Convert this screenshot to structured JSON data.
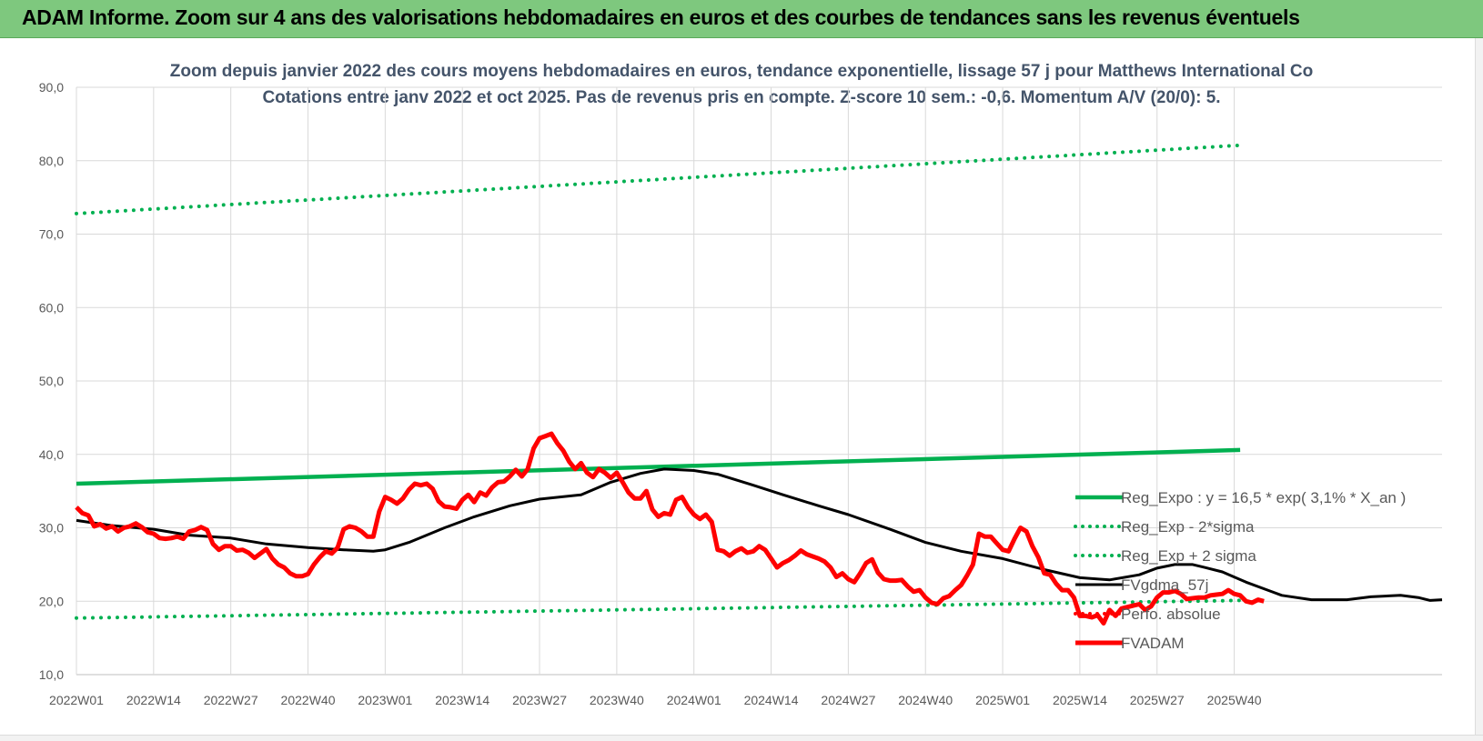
{
  "header": {
    "title": "ADAM Informe. Zoom sur 4 ans des valorisations hebdomadaires en euros et des courbes de tendances sans les revenus éventuels"
  },
  "chart_data": {
    "type": "line",
    "title": "Zoom depuis janvier 2022 des cours moyens hebdomadaires en euros, tendance exponentielle, lissage 57 j pour Matthews International Co",
    "subtitle": "Cotations entre janv 2022 et oct 2025. Pas de revenus pris en compte. Z-score 10 sem.: -0,6.  Momentum A/V (20/0): 5.",
    "xlabel": "",
    "ylabel": "",
    "ylim": [
      10,
      90
    ],
    "ytick_labels": [
      "10,0",
      "20,0",
      "30,0",
      "40,0",
      "50,0",
      "60,0",
      "70,0",
      "80,0",
      "90,0"
    ],
    "x_tick_labels": [
      "2022W01",
      "2022W14",
      "2022W27",
      "2022W40",
      "2023W01",
      "2023W14",
      "2023W27",
      "2023W40",
      "2024W01",
      "2024W14",
      "2024W27",
      "2024W40",
      "2025W01",
      "2025W14",
      "2025W27",
      "2025W40"
    ],
    "grid": "vertical and horizontal",
    "legend_position": "right",
    "colors": {
      "reg_expo": "#00b050",
      "fvgdma": "#000000",
      "perfo": "#ff0000",
      "fvadam": "#ff0000",
      "grid": "#d9d9d9",
      "banner": "#7ec87e"
    },
    "series": [
      {
        "name": "Reg_Expo : y = 16,5 * exp( 3,1% * X_an )",
        "style": "solid",
        "color": "#00b050",
        "points": [
          [
            0,
            36.0
          ],
          [
            196,
            40.6
          ]
        ]
      },
      {
        "name": "Reg_Exp - 2*sigma",
        "style": "dotted",
        "color": "#00b050",
        "points": [
          [
            0,
            17.7
          ],
          [
            196,
            20.1
          ]
        ]
      },
      {
        "name": "Reg_Exp + 2 sigma",
        "style": "dotted",
        "color": "#00b050",
        "points": [
          [
            0,
            72.8
          ],
          [
            196,
            82.1
          ]
        ]
      },
      {
        "name": "FVgdma_57j",
        "style": "solid",
        "color": "#000000",
        "points": [
          [
            0,
            31.0
          ],
          [
            6,
            30.3
          ],
          [
            13,
            29.8
          ],
          [
            19,
            29.0
          ],
          [
            26,
            28.6
          ],
          [
            32,
            27.8
          ],
          [
            39,
            27.3
          ],
          [
            45,
            27.0
          ],
          [
            50,
            26.8
          ],
          [
            52,
            27.0
          ],
          [
            56,
            28.0
          ],
          [
            62,
            30.0
          ],
          [
            67,
            31.5
          ],
          [
            73,
            33.0
          ],
          [
            78,
            33.9
          ],
          [
            85,
            34.5
          ],
          [
            90,
            36.2
          ],
          [
            95,
            37.4
          ],
          [
            99,
            38.0
          ],
          [
            104,
            37.8
          ],
          [
            108,
            37.3
          ],
          [
            114,
            35.8
          ],
          [
            119,
            34.5
          ],
          [
            125,
            33.0
          ],
          [
            130,
            31.8
          ],
          [
            137,
            29.8
          ],
          [
            143,
            28.0
          ],
          [
            149,
            26.8
          ],
          [
            156,
            25.8
          ],
          [
            163,
            24.3
          ],
          [
            169,
            23.2
          ],
          [
            174,
            22.9
          ],
          [
            179,
            23.6
          ],
          [
            182,
            24.5
          ],
          [
            185,
            25.0
          ],
          [
            188,
            25.0
          ],
          [
            190,
            24.6
          ],
          [
            193,
            24.0
          ],
          [
            197,
            22.6
          ],
          [
            203,
            20.8
          ],
          [
            208,
            20.2
          ],
          [
            214,
            20.2
          ],
          [
            218,
            20.6
          ],
          [
            223,
            20.8
          ],
          [
            226,
            20.5
          ],
          [
            228,
            20.1
          ],
          [
            230,
            20.2
          ]
        ]
      },
      {
        "name": "Perfo. absolue",
        "style": "dotted",
        "color": "#ff0000",
        "points": []
      },
      {
        "name": "FVADAM",
        "style": "solid",
        "color": "#ff0000",
        "points": [
          [
            0,
            32.8
          ],
          [
            1,
            32.0
          ],
          [
            2,
            31.7
          ],
          [
            3,
            30.2
          ],
          [
            4,
            30.5
          ],
          [
            5,
            29.9
          ],
          [
            6,
            30.2
          ],
          [
            7,
            29.5
          ],
          [
            8,
            30.0
          ],
          [
            9,
            30.2
          ],
          [
            10,
            30.6
          ],
          [
            11,
            30.1
          ],
          [
            12,
            29.4
          ],
          [
            13,
            29.2
          ],
          [
            14,
            28.6
          ],
          [
            15,
            28.5
          ],
          [
            16,
            28.6
          ],
          [
            17,
            28.8
          ],
          [
            18,
            28.5
          ],
          [
            19,
            29.5
          ],
          [
            20,
            29.7
          ],
          [
            21,
            30.1
          ],
          [
            22,
            29.7
          ],
          [
            23,
            27.8
          ],
          [
            24,
            27.0
          ],
          [
            25,
            27.5
          ],
          [
            26,
            27.5
          ],
          [
            27,
            26.9
          ],
          [
            28,
            27.0
          ],
          [
            29,
            26.6
          ],
          [
            30,
            25.9
          ],
          [
            31,
            26.5
          ],
          [
            32,
            27.1
          ],
          [
            33,
            25.8
          ],
          [
            34,
            25.0
          ],
          [
            35,
            24.6
          ],
          [
            36,
            23.8
          ],
          [
            37,
            23.4
          ],
          [
            38,
            23.4
          ],
          [
            39,
            23.7
          ],
          [
            40,
            25.0
          ],
          [
            41,
            26.0
          ],
          [
            42,
            26.8
          ],
          [
            43,
            26.5
          ],
          [
            44,
            27.3
          ],
          [
            45,
            29.8
          ],
          [
            46,
            30.2
          ],
          [
            47,
            30.0
          ],
          [
            48,
            29.5
          ],
          [
            49,
            28.8
          ],
          [
            50,
            28.8
          ],
          [
            51,
            32.2
          ],
          [
            52,
            34.2
          ],
          [
            53,
            33.8
          ],
          [
            54,
            33.3
          ],
          [
            55,
            34.0
          ],
          [
            56,
            35.2
          ],
          [
            57,
            36.0
          ],
          [
            58,
            35.8
          ],
          [
            59,
            36.0
          ],
          [
            60,
            35.3
          ],
          [
            61,
            33.6
          ],
          [
            62,
            32.9
          ],
          [
            63,
            32.8
          ],
          [
            64,
            32.6
          ],
          [
            65,
            33.8
          ],
          [
            66,
            34.5
          ],
          [
            67,
            33.5
          ],
          [
            68,
            34.8
          ],
          [
            69,
            34.4
          ],
          [
            70,
            35.5
          ],
          [
            71,
            36.2
          ],
          [
            72,
            36.3
          ],
          [
            73,
            37.0
          ],
          [
            74,
            37.9
          ],
          [
            75,
            37.0
          ],
          [
            76,
            38.0
          ],
          [
            77,
            40.8
          ],
          [
            78,
            42.2
          ],
          [
            79,
            42.5
          ],
          [
            80,
            42.8
          ],
          [
            81,
            41.5
          ],
          [
            82,
            40.5
          ],
          [
            83,
            39.0
          ],
          [
            84,
            38.0
          ],
          [
            85,
            38.8
          ],
          [
            86,
            37.5
          ],
          [
            87,
            36.9
          ],
          [
            88,
            38.0
          ],
          [
            89,
            37.5
          ],
          [
            90,
            36.8
          ],
          [
            91,
            37.5
          ],
          [
            92,
            36.2
          ],
          [
            93,
            34.8
          ],
          [
            94,
            34.0
          ],
          [
            95,
            34.0
          ],
          [
            96,
            35.0
          ],
          [
            97,
            32.5
          ],
          [
            98,
            31.5
          ],
          [
            99,
            32.0
          ],
          [
            100,
            31.8
          ],
          [
            101,
            33.8
          ],
          [
            102,
            34.2
          ],
          [
            103,
            32.8
          ],
          [
            104,
            31.8
          ],
          [
            105,
            31.2
          ],
          [
            106,
            31.8
          ],
          [
            107,
            30.8
          ],
          [
            108,
            27.0
          ],
          [
            109,
            26.8
          ],
          [
            110,
            26.2
          ],
          [
            111,
            26.8
          ],
          [
            112,
            27.2
          ],
          [
            113,
            26.6
          ],
          [
            114,
            26.8
          ],
          [
            115,
            27.5
          ],
          [
            116,
            27.0
          ],
          [
            117,
            25.8
          ],
          [
            118,
            24.6
          ],
          [
            119,
            25.2
          ],
          [
            120,
            25.6
          ],
          [
            121,
            26.2
          ],
          [
            122,
            26.9
          ],
          [
            123,
            26.4
          ],
          [
            124,
            26.1
          ],
          [
            125,
            25.8
          ],
          [
            126,
            25.4
          ],
          [
            127,
            24.6
          ],
          [
            128,
            23.3
          ],
          [
            129,
            23.8
          ],
          [
            130,
            23.0
          ],
          [
            131,
            22.6
          ],
          [
            132,
            23.8
          ],
          [
            133,
            25.2
          ],
          [
            134,
            25.7
          ],
          [
            135,
            23.9
          ],
          [
            136,
            23.0
          ],
          [
            137,
            22.8
          ],
          [
            138,
            22.8
          ],
          [
            139,
            22.9
          ],
          [
            140,
            22.0
          ],
          [
            141,
            21.3
          ],
          [
            142,
            21.5
          ],
          [
            143,
            20.5
          ],
          [
            144,
            19.8
          ],
          [
            145,
            19.6
          ],
          [
            146,
            20.4
          ],
          [
            147,
            20.7
          ],
          [
            148,
            21.5
          ],
          [
            149,
            22.2
          ],
          [
            150,
            23.5
          ],
          [
            151,
            25.0
          ],
          [
            152,
            29.2
          ],
          [
            153,
            28.8
          ],
          [
            154,
            28.8
          ],
          [
            155,
            27.9
          ],
          [
            156,
            27.0
          ],
          [
            157,
            26.8
          ],
          [
            158,
            28.5
          ],
          [
            159,
            30.0
          ],
          [
            160,
            29.5
          ],
          [
            161,
            27.5
          ],
          [
            162,
            26.0
          ],
          [
            163,
            23.8
          ],
          [
            164,
            23.6
          ],
          [
            165,
            22.4
          ],
          [
            166,
            21.5
          ],
          [
            167,
            21.5
          ],
          [
            168,
            20.5
          ],
          [
            169,
            18.0
          ],
          [
            170,
            18.0
          ],
          [
            171,
            17.8
          ],
          [
            172,
            18.1
          ],
          [
            173,
            17.0
          ],
          [
            174,
            18.8
          ],
          [
            175,
            18.0
          ],
          [
            176,
            19.0
          ],
          [
            177,
            19.2
          ],
          [
            178,
            19.4
          ],
          [
            179,
            19.6
          ],
          [
            180,
            18.8
          ],
          [
            181,
            19.3
          ],
          [
            182,
            20.5
          ],
          [
            183,
            21.2
          ],
          [
            184,
            21.2
          ],
          [
            185,
            21.4
          ],
          [
            186,
            21.0
          ],
          [
            187,
            20.3
          ],
          [
            188,
            20.4
          ],
          [
            189,
            20.5
          ],
          [
            190,
            20.5
          ],
          [
            191,
            20.8
          ],
          [
            192,
            20.9
          ],
          [
            193,
            21.0
          ],
          [
            194,
            21.5
          ],
          [
            195,
            21.0
          ],
          [
            196,
            20.8
          ],
          [
            197,
            20.0
          ],
          [
            198,
            19.8
          ],
          [
            199,
            20.2
          ],
          [
            200,
            20.0
          ]
        ]
      }
    ]
  }
}
